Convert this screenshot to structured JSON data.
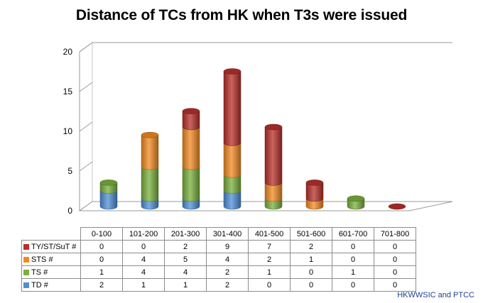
{
  "chart_data": {
    "type": "bar",
    "stacked": true,
    "three_d": true,
    "title": "Distance of TCs from HK when T3s were issued",
    "categories": [
      "0-100",
      "101-200",
      "201-300",
      "301-400",
      "401-500",
      "501-600",
      "601-700",
      "701-800"
    ],
    "ylim": [
      0,
      20
    ],
    "yticks": [
      0,
      5,
      10,
      15,
      20
    ],
    "series": [
      {
        "name": "TD #",
        "color": "#4f8fd6",
        "values": [
          2,
          1,
          1,
          2,
          0,
          0,
          0,
          0
        ]
      },
      {
        "name": "TS #",
        "color": "#7ab03c",
        "values": [
          1,
          4,
          4,
          2,
          1,
          0,
          1,
          0
        ]
      },
      {
        "name": "STS #",
        "color": "#f28a23",
        "values": [
          0,
          4,
          5,
          4,
          2,
          1,
          0,
          0
        ]
      },
      {
        "name": "TY/ST/SuT #",
        "color": "#b8302a",
        "values": [
          0,
          0,
          2,
          9,
          7,
          2,
          0,
          0
        ]
      }
    ],
    "table_row_order": [
      "TY/ST/SuT #",
      "STS #",
      "TS #",
      "TD #"
    ],
    "data_table": true,
    "grid": false
  },
  "credit": "HKWWSIC and PTCC"
}
